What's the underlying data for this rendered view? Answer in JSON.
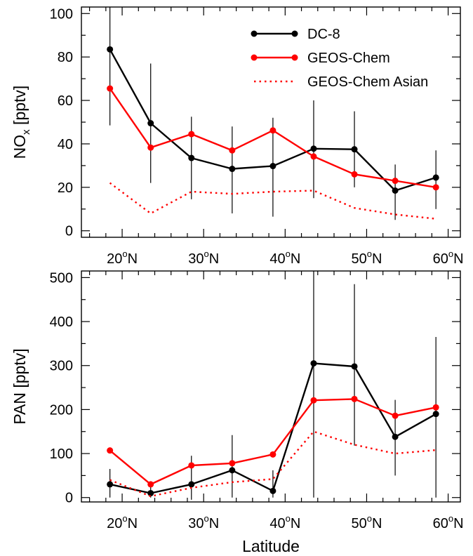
{
  "chart_data": [
    {
      "type": "line",
      "ylabel_main": "NO",
      "ylabel_sub": "x",
      "ylabel_unit": " [pptv]",
      "xlim": [
        15,
        61.5
      ],
      "ylim": [
        -3,
        103
      ],
      "yticks": [
        0,
        20,
        40,
        60,
        80,
        100
      ],
      "xticks": [
        20,
        30,
        40,
        50,
        60
      ],
      "legend_position": "top-right",
      "legend": [
        {
          "label": "DC-8",
          "color": "#000000",
          "style": "solid-marker"
        },
        {
          "label": "GEOS-Chem",
          "color": "#ff0000",
          "style": "solid-marker"
        },
        {
          "label": "GEOS-Chem Asian",
          "color": "#ff0000",
          "style": "dotted"
        }
      ],
      "series": [
        {
          "name": "DC-8",
          "color": "#000000",
          "style": "solid-marker",
          "x": [
            18.5,
            23.5,
            28.5,
            33.5,
            38.5,
            43.5,
            48.5,
            53.5,
            58.5
          ],
          "values": [
            83.5,
            49.5,
            33.5,
            28.5,
            29.8,
            37.8,
            37.5,
            18.5,
            24.5
          ],
          "err_low": [
            48.5,
            22,
            14.5,
            8,
            6.5,
            15,
            20,
            5,
            10
          ],
          "err_high": [
            103,
            77,
            52.5,
            48,
            52,
            60,
            55,
            30.5,
            37
          ]
        },
        {
          "name": "GEOS-Chem",
          "color": "#ff0000",
          "style": "solid-marker",
          "x": [
            18.5,
            23.5,
            28.5,
            33.5,
            38.5,
            43.5,
            48.5,
            53.5,
            58.5
          ],
          "values": [
            65.5,
            38.3,
            44.5,
            37,
            46.2,
            34.2,
            26,
            23,
            20
          ]
        },
        {
          "name": "GEOS-Chem Asian",
          "color": "#ff0000",
          "style": "dotted",
          "x": [
            18.5,
            23.5,
            28.5,
            33.5,
            38.5,
            43.5,
            48.5,
            53.5,
            58.5
          ],
          "values": [
            22,
            8,
            18,
            17,
            18,
            18.5,
            10.5,
            7.5,
            5.5
          ]
        }
      ]
    },
    {
      "type": "line",
      "ylabel": "PAN [pptv]",
      "xlabel": "Latitude",
      "xlim": [
        15,
        61.5
      ],
      "ylim": [
        -10,
        515
      ],
      "yticks": [
        0,
        100,
        200,
        300,
        400,
        500
      ],
      "xticks": [
        20,
        30,
        40,
        50,
        60
      ],
      "series": [
        {
          "name": "DC-8",
          "color": "#000000",
          "style": "solid-marker",
          "x": [
            18.5,
            23.5,
            28.5,
            33.5,
            38.5,
            43.5,
            48.5,
            53.5,
            58.5
          ],
          "values": [
            30,
            10,
            30,
            62,
            15,
            305,
            298,
            138,
            190
          ],
          "err_low": [
            0,
            0,
            -5,
            0,
            0,
            0,
            118,
            50,
            0
          ],
          "err_high": [
            65,
            30,
            95,
            142,
            62,
            515,
            485,
            222,
            365
          ]
        },
        {
          "name": "GEOS-Chem",
          "color": "#ff0000",
          "style": "solid-marker",
          "x": [
            18.5,
            23.5,
            28.5,
            33.5,
            38.5,
            43.5,
            48.5,
            53.5,
            58.5
          ],
          "values": [
            107,
            30,
            73,
            78,
            98,
            221,
            224,
            186,
            205
          ]
        },
        {
          "name": "GEOS-Chem Asian",
          "color": "#ff0000",
          "style": "dotted",
          "x": [
            18.5,
            23.5,
            28.5,
            33.5,
            38.5,
            43.5,
            48.5,
            53.5,
            58.5
          ],
          "values": [
            40,
            3,
            22,
            35,
            42,
            150,
            120,
            100,
            108
          ]
        }
      ]
    }
  ]
}
